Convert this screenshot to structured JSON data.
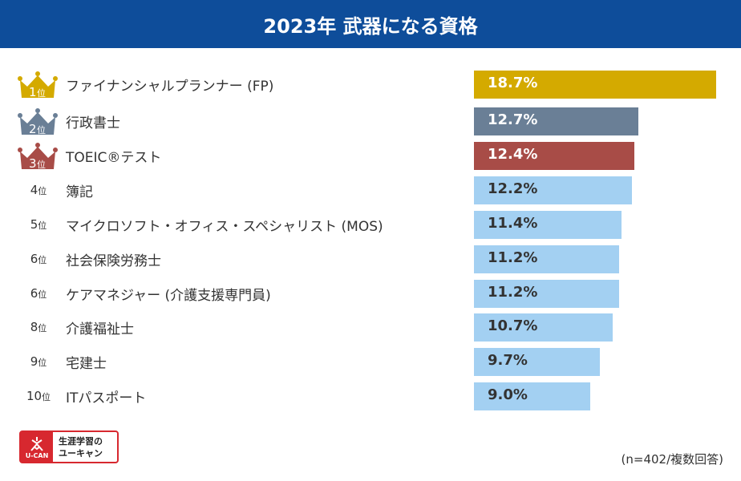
{
  "header": {
    "title": "2023年 武器になる資格"
  },
  "chart_data": {
    "type": "bar",
    "orientation": "horizontal",
    "title": "2023年 武器になる資格",
    "ranks": [
      "1",
      "2",
      "3",
      "4",
      "5",
      "6",
      "6",
      "8",
      "9",
      "10"
    ],
    "rank_suffix": "位",
    "categories": [
      "ファイナンシャルプランナー (FP)",
      "行政書士",
      "TOEIC®テスト",
      "簿記",
      "マイクロソフト・オフィス・スペシャリスト (MOS)",
      "社会保険労務士",
      "ケアマネジャー (介護支援専門員)",
      "介護福祉士",
      "宅建士",
      "ITパスポート"
    ],
    "values": [
      18.7,
      12.7,
      12.4,
      12.2,
      11.4,
      11.2,
      11.2,
      10.7,
      9.7,
      9.0
    ],
    "value_labels": [
      "18.7%",
      "12.7%",
      "12.4%",
      "12.2%",
      "11.4%",
      "11.2%",
      "11.2%",
      "10.7%",
      "9.7%",
      "9.0%"
    ],
    "unit": "%",
    "xlim": [
      0,
      18.7
    ],
    "colors": [
      "#d4aa00",
      "#6a7f96",
      "#a84c47",
      "#a3d0f2",
      "#a3d0f2",
      "#a3d0f2",
      "#a3d0f2",
      "#a3d0f2",
      "#a3d0f2",
      "#a3d0f2"
    ],
    "value_text_colors": [
      "#ffffff",
      "#ffffff",
      "#ffffff",
      "#333333",
      "#333333",
      "#333333",
      "#333333",
      "#333333",
      "#333333",
      "#333333"
    ],
    "crown_icons": [
      "gold-crown-icon",
      "silver-crown-icon",
      "bronze-crown-icon"
    ],
    "note": "(n=402/複数回答)"
  },
  "logo": {
    "mark": "U-CAN",
    "line1": "生涯学習の",
    "line2": "ユーキャン"
  }
}
